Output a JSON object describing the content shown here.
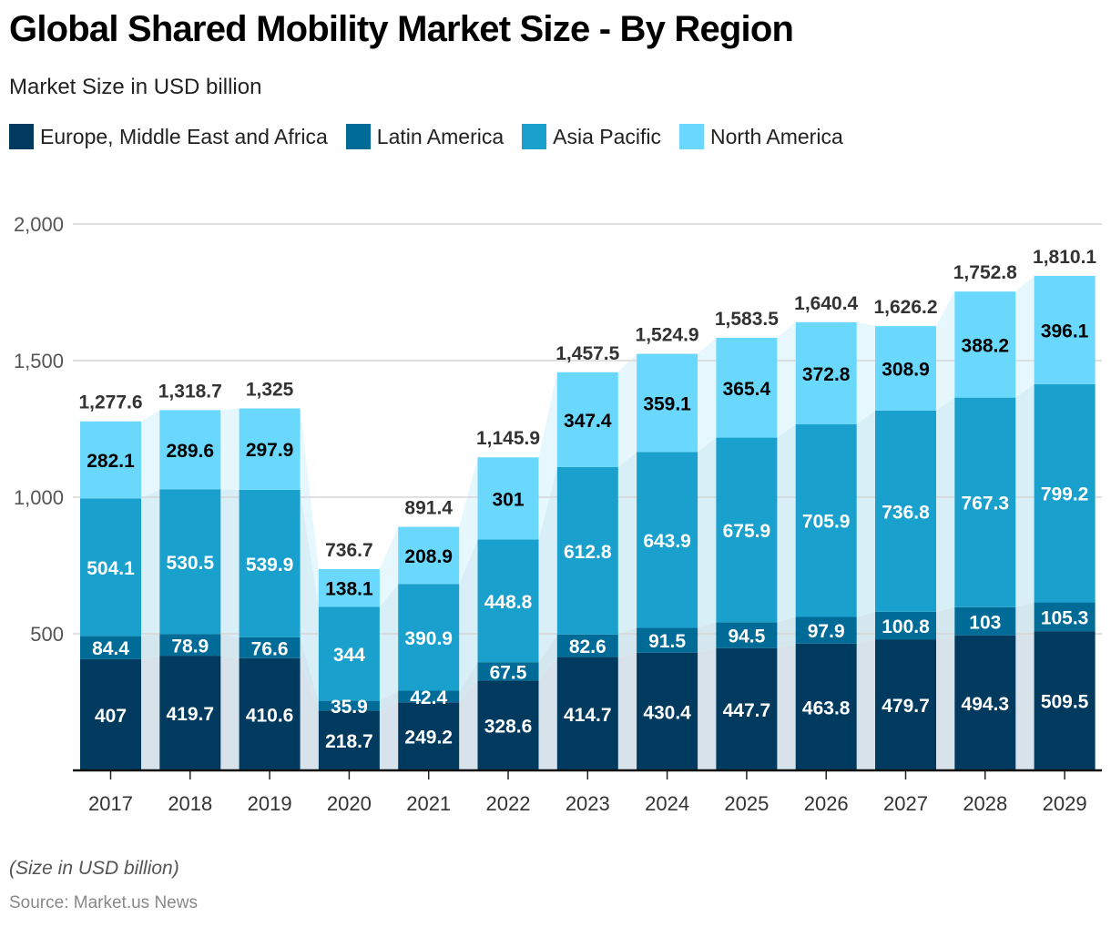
{
  "header": {
    "title": "Global Shared Mobility Market Size - By Region",
    "subtitle": "Market Size in USD billion"
  },
  "footer": {
    "note": "(Size in USD billion)",
    "source": "Source: Market.us News"
  },
  "colors": {
    "europe_middle_east_africa": "#003a5e",
    "latin_america": "#006b96",
    "asia_pacific": "#19a0cc",
    "north_america": "#6ad8fd"
  },
  "chart_data": {
    "type": "bar",
    "stacked": true,
    "title": "Global Shared Mobility Market Size - By Region",
    "subtitle": "Market Size in USD billion",
    "xlabel": "",
    "ylabel": "",
    "ylim": [
      0,
      2000
    ],
    "yticks": [
      500,
      1000,
      1500,
      2000
    ],
    "ytick_labels": [
      "500",
      "1,000",
      "1,500",
      "2,000"
    ],
    "grid": true,
    "legend_position": "top-left",
    "categories": [
      "2017",
      "2018",
      "2019",
      "2020",
      "2021",
      "2022",
      "2023",
      "2024",
      "2025",
      "2026",
      "2027",
      "2028",
      "2029"
    ],
    "series": [
      {
        "name": "Europe, Middle East and Africa",
        "color": "#003a5e",
        "label_color": "#ffffff",
        "values": [
          407,
          419.7,
          410.6,
          218.7,
          249.2,
          328.6,
          414.7,
          430.4,
          447.7,
          463.8,
          479.7,
          494.3,
          509.5
        ],
        "labels": [
          "407",
          "419.7",
          "410.6",
          "218.7",
          "249.2",
          "328.6",
          "414.7",
          "430.4",
          "447.7",
          "463.8",
          "479.7",
          "494.3",
          "509.5"
        ]
      },
      {
        "name": "Latin America",
        "color": "#006b96",
        "label_color": "#ffffff",
        "values": [
          84.4,
          78.9,
          76.6,
          35.9,
          42.4,
          67.5,
          82.6,
          91.5,
          94.5,
          97.9,
          100.8,
          103,
          105.3
        ],
        "labels": [
          "84.4",
          "78.9",
          "76.6",
          "35.9",
          "42.4",
          "67.5",
          "82.6",
          "91.5",
          "94.5",
          "97.9",
          "100.8",
          "103",
          "105.3"
        ]
      },
      {
        "name": "Asia Pacific",
        "color": "#19a0cc",
        "label_color": "#ffffff",
        "values": [
          504.1,
          530.5,
          539.9,
          344,
          390.9,
          448.8,
          612.8,
          643.9,
          675.9,
          705.9,
          736.8,
          767.3,
          799.2
        ],
        "labels": [
          "504.1",
          "530.5",
          "539.9",
          "344",
          "390.9",
          "448.8",
          "612.8",
          "643.9",
          "675.9",
          "705.9",
          "736.8",
          "767.3",
          "799.2"
        ]
      },
      {
        "name": "North America",
        "color": "#6ad8fd",
        "label_color": "#000000",
        "values": [
          282.1,
          289.6,
          297.9,
          138.1,
          208.9,
          301,
          347.4,
          359.1,
          365.4,
          372.8,
          308.9,
          388.2,
          396.1
        ],
        "labels": [
          "282.1",
          "289.6",
          "297.9",
          "138.1",
          "208.9",
          "301",
          "347.4",
          "359.1",
          "365.4",
          "372.8",
          "308.9",
          "388.2",
          "396.1"
        ]
      }
    ],
    "totals": [
      1277.6,
      1318.7,
      1325,
      736.7,
      891.4,
      1145.9,
      1457.5,
      1524.9,
      1583.5,
      1640.4,
      1626.2,
      1752.8,
      1810.1
    ],
    "total_labels": [
      "1,277.6",
      "1,318.7",
      "1,325",
      "736.7",
      "891.4",
      "1,145.9",
      "1,457.5",
      "1,524.9",
      "1,583.5",
      "1,640.4",
      "1,626.2",
      "1,752.8",
      "1,810.1"
    ]
  }
}
